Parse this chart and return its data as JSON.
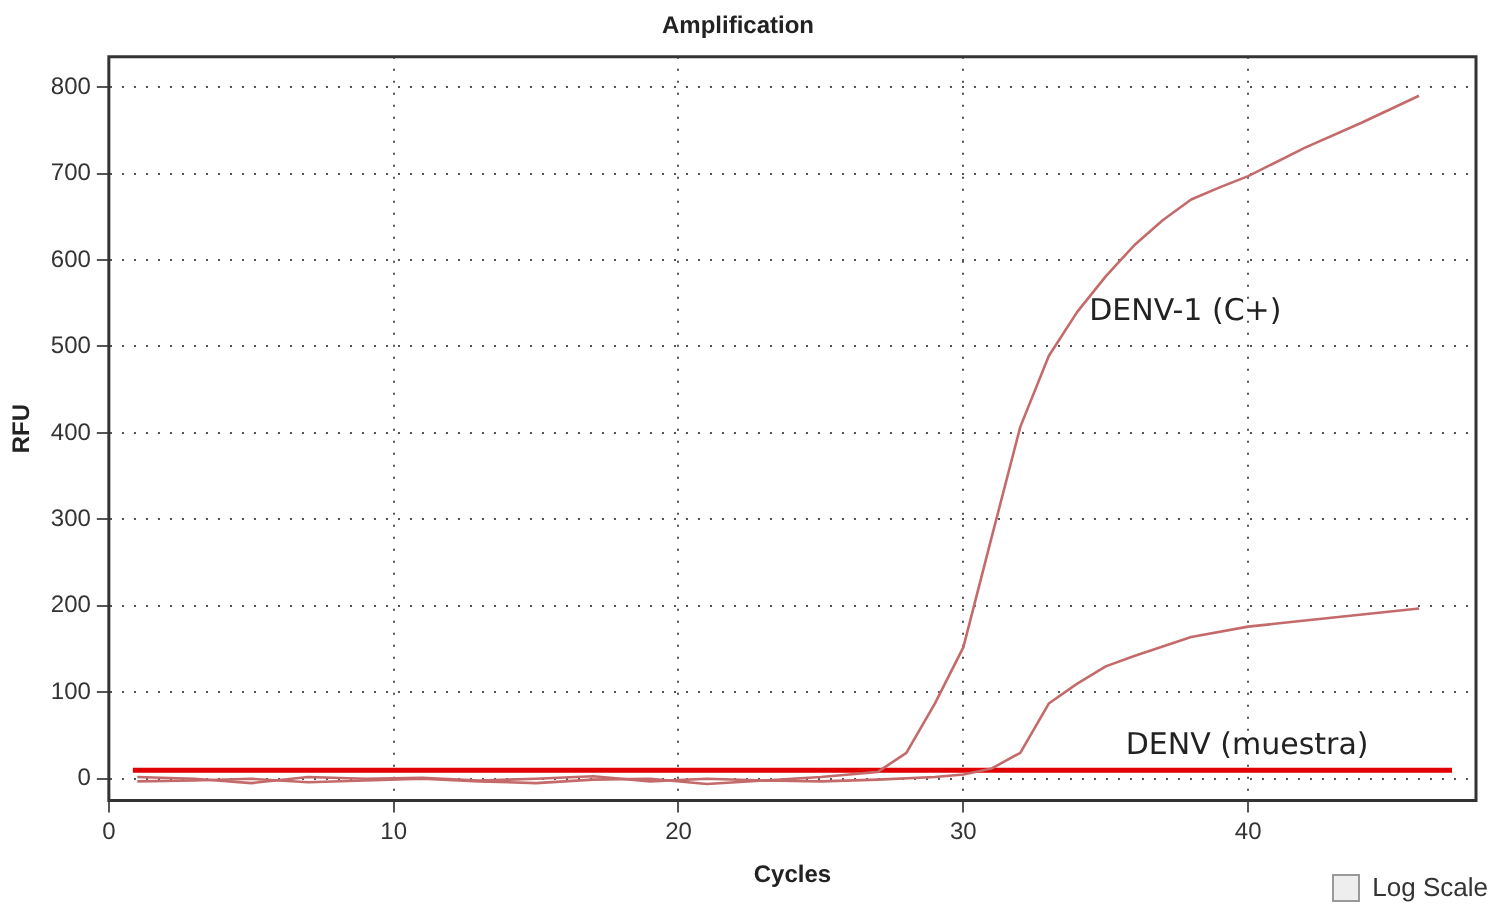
{
  "chart_data": {
    "type": "line",
    "title": "Amplification",
    "xlabel": "Cycles",
    "ylabel": "RFU",
    "xlim": [
      0,
      48
    ],
    "xticks": [
      0,
      10,
      20,
      30,
      40
    ],
    "ylim": [
      -25,
      835
    ],
    "yticks": [
      0,
      100,
      200,
      300,
      400,
      500,
      600,
      700,
      800
    ],
    "grid": true,
    "legend": false,
    "marker": "none",
    "line_style": "solid",
    "series": [
      {
        "name": "DENV-1 (C+)",
        "color": "#c46a6a",
        "x": [
          1,
          3,
          5,
          7,
          9,
          11,
          13,
          15,
          17,
          19,
          21,
          23,
          25,
          26,
          27,
          28,
          29,
          30,
          31,
          32,
          33,
          34,
          35,
          36,
          37,
          38,
          39,
          40,
          42,
          44,
          46
        ],
        "values": [
          2,
          0,
          -5,
          2,
          0,
          1,
          -2,
          0,
          3,
          -3,
          0,
          -2,
          2,
          5,
          8,
          30,
          87,
          152,
          280,
          407,
          489,
          540,
          581,
          617,
          646,
          670,
          684,
          697,
          730,
          759,
          790
        ]
      },
      {
        "name": "DENV (muestra)",
        "color": "#c46a6a",
        "x": [
          1,
          3,
          5,
          7,
          9,
          11,
          13,
          15,
          17,
          19,
          21,
          23,
          25,
          27,
          29,
          30,
          31,
          32,
          33,
          34,
          35,
          36,
          38,
          40,
          42,
          44,
          46
        ],
        "values": [
          -3,
          -2,
          0,
          -4,
          -2,
          0,
          -3,
          -5,
          -1,
          0,
          -6,
          -2,
          -3,
          -1,
          2,
          5,
          12,
          30,
          87,
          110,
          130,
          142,
          164,
          176,
          183,
          190,
          197
        ]
      }
    ],
    "ref_lines": [
      {
        "axis": "y",
        "value": 10,
        "color": "#e00000"
      }
    ],
    "annotations": [
      "Log Scale"
    ]
  }
}
